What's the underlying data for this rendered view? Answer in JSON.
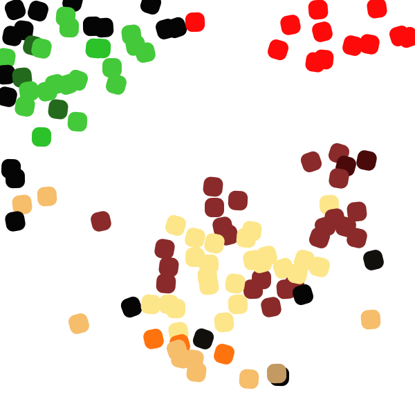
{
  "image": {
    "description_free": true,
    "background": "#ffffff",
    "mark_shape": "rounded-square",
    "palette": {
      "black": "#050505",
      "near_black": "#12100d",
      "bright_green": "#44c93a",
      "lime_green": "#2cc22a",
      "dark_green": "#236a1c",
      "red": "#ff0a0a",
      "maroon": "#8a2a2a",
      "dark_maroon": "#4a0a0a",
      "pale_yellow": "#fde68a",
      "light_orange": "#f6bd6b",
      "orange": "#ff730e",
      "tan": "#c49a63"
    },
    "groups": [
      {
        "name": "green-cluster",
        "color_key": "bright_green"
      },
      {
        "name": "red-cluster",
        "color_key": "red"
      },
      {
        "name": "maroon-cluster",
        "color_key": "maroon"
      },
      {
        "name": "yellow-cluster",
        "color_key": "pale_yellow"
      },
      {
        "name": "orange-cluster",
        "color_key": "light_orange"
      },
      {
        "name": "black-cluster",
        "color_key": "black"
      }
    ]
  }
}
